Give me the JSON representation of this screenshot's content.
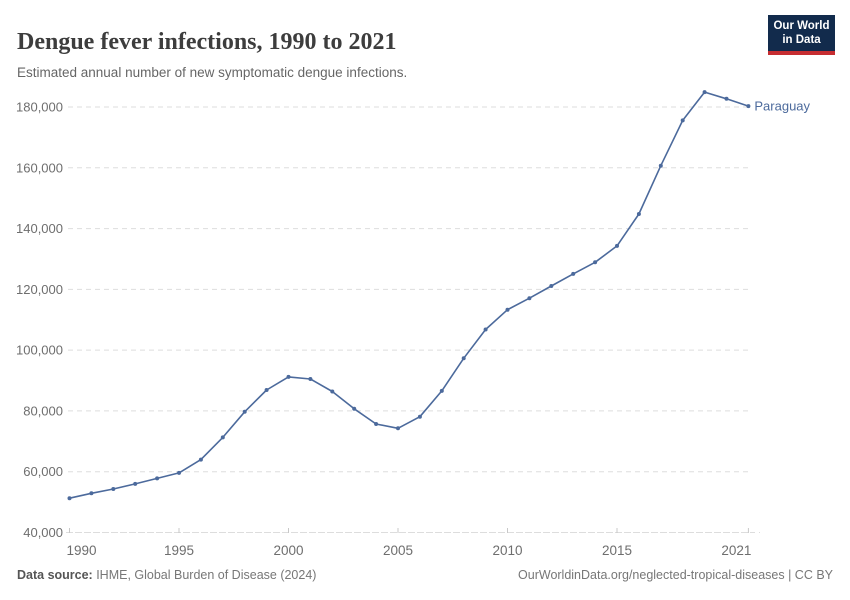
{
  "header": {
    "title": "Dengue fever infections, 1990 to 2021",
    "subtitle": "Estimated annual number of new symptomatic dengue infections."
  },
  "logo": {
    "line1": "Our World",
    "line2": "in Data"
  },
  "footer": {
    "source_label": "Data source:",
    "source_value": " IHME, Global Burden of Disease (2024)",
    "rights": "OurWorldinData.org/neglected-tropical-diseases | CC BY"
  },
  "colors": {
    "line": "#4c6a9c",
    "grid": "#dddddd",
    "axis_tick": "#c8c8c8",
    "tick_text": "#6e6e6e",
    "logo_navy": "#122b4c",
    "logo_red": "#c62d31"
  },
  "chart_data": {
    "type": "line",
    "title": "Dengue fever infections, 1990 to 2021",
    "xlabel": "",
    "ylabel": "",
    "grid": "horizontal-dashed",
    "legend_position": "end-of-line-label",
    "ylim": [
      40000,
      186000
    ],
    "xlim": [
      1990,
      2021
    ],
    "x": [
      1990,
      1991,
      1992,
      1993,
      1994,
      1995,
      1996,
      1997,
      1998,
      1999,
      2000,
      2001,
      2002,
      2003,
      2004,
      2005,
      2006,
      2007,
      2008,
      2009,
      2010,
      2011,
      2012,
      2013,
      2014,
      2015,
      2016,
      2017,
      2018,
      2019,
      2020,
      2021
    ],
    "series": [
      {
        "name": "Paraguay",
        "values": [
          51300,
          52900,
          54300,
          56000,
          57800,
          59600,
          64000,
          71300,
          79700,
          86900,
          91200,
          90500,
          86400,
          80700,
          75700,
          74300,
          78100,
          86600,
          97300,
          106800,
          113300,
          117100,
          121100,
          125100,
          128900,
          134300,
          144800,
          160700,
          175600,
          184900,
          182700,
          180300
        ]
      }
    ],
    "yticks": [
      40000,
      60000,
      80000,
      100000,
      120000,
      140000,
      160000,
      180000
    ],
    "xticks": [
      1990,
      1995,
      2000,
      2005,
      2010,
      2015,
      2021
    ]
  }
}
